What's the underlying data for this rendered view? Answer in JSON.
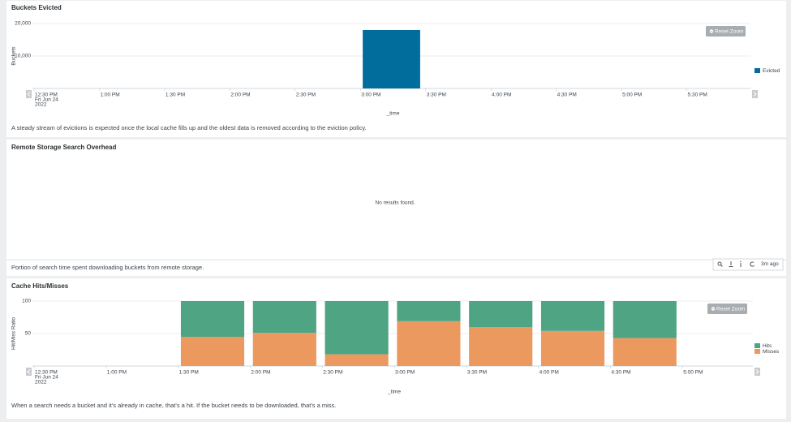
{
  "chart_data": [
    {
      "type": "bar",
      "title": "Buckets Evicted",
      "ylabel": "Buckets",
      "xlabel": "_time",
      "categories": [
        "12:30 PM",
        "1:00 PM",
        "1:30 PM",
        "2:00 PM",
        "2:30 PM",
        "3:00 PM",
        "3:30 PM",
        "4:00 PM",
        "4:30 PM",
        "5:00 PM",
        "5:30 PM"
      ],
      "x_date_label": [
        "Fri Jun 24",
        "2022"
      ],
      "series": [
        {
          "name": "Evicted",
          "color": "#006d9c",
          "values": [
            null,
            null,
            null,
            null,
            null,
            18000,
            null,
            null,
            null,
            null,
            null
          ]
        }
      ],
      "ylim": [
        0,
        20000
      ],
      "yticks": [
        {
          "value": 10000,
          "label": "10,000"
        },
        {
          "value": 20000,
          "label": "20,000"
        }
      ],
      "grid": true,
      "legend": "right",
      "reset_zoom": "Reset Zoom",
      "description": "A steady stream of evictions is expected once the local cache fills up and the oldest data is removed according to the eviction policy."
    },
    {
      "type": "stacked_bar",
      "title": "Cache Hits/Misses",
      "ylabel": "Hit/Miss Ratio",
      "xlabel": "_time",
      "categories": [
        "12:30 PM",
        "1:00 PM",
        "1:30 PM",
        "2:00 PM",
        "2:30 PM",
        "3:00 PM",
        "3:30 PM",
        "4:00 PM",
        "4:30 PM",
        "5:00 PM"
      ],
      "x_date_label": [
        "Fri Jun 24",
        "2022"
      ],
      "series": [
        {
          "name": "Hits",
          "color": "#4fa484",
          "values": [
            null,
            null,
            55,
            49,
            82,
            31,
            40,
            46,
            57,
            null
          ]
        },
        {
          "name": "Misses",
          "color": "#ec9960",
          "values": [
            null,
            null,
            45,
            51,
            18,
            69,
            60,
            54,
            43,
            null
          ]
        }
      ],
      "ylim": [
        0,
        100
      ],
      "yticks": [
        50,
        100
      ],
      "grid": true,
      "legend": "right",
      "reset_zoom": "Reset Zoom",
      "description": "When a search needs a bucket and it's already in cache, that's a hit. If the bucket needs to be downloaded, that's a miss."
    }
  ],
  "empty_panel": {
    "title": "Remote Storage Search Overhead",
    "message": "No results found.",
    "description": "Portion of search time spent downloading buckets from remote storage.",
    "age": "3m ago"
  }
}
